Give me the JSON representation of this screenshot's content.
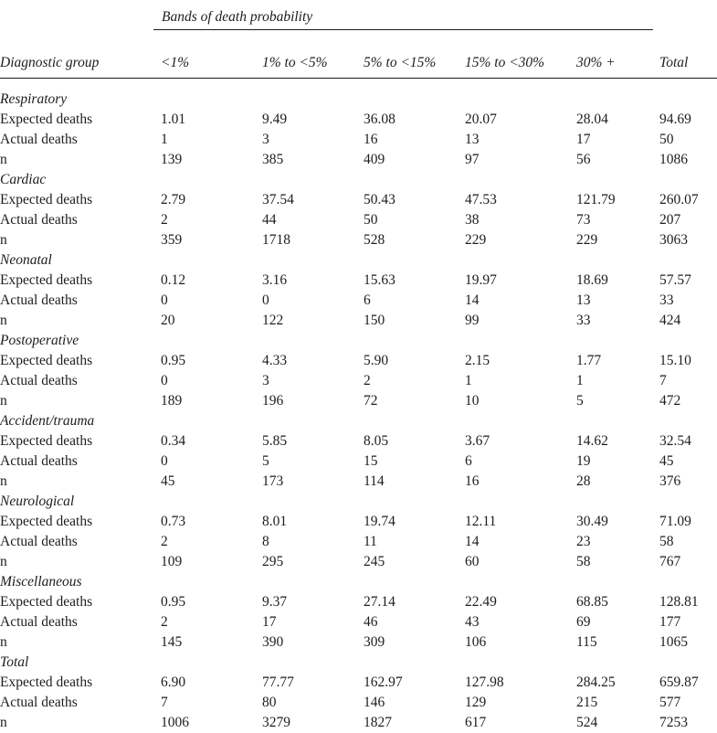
{
  "table": {
    "spanner": "Bands of death probability",
    "stub_header": "Diagnostic group",
    "columns": [
      "<1%",
      "1% to\n<5%",
      "5% to\n<15%",
      "15% to\n<30%",
      "30% +",
      "Total"
    ],
    "row_labels": [
      "Expected deaths",
      "Actual deaths",
      "n"
    ],
    "groups": [
      {
        "name": "Respiratory",
        "expected": [
          "1.01",
          "9.49",
          "36.08",
          "20.07",
          "28.04",
          "94.69"
        ],
        "actual": [
          "1",
          "3",
          "16",
          "13",
          "17",
          "50"
        ],
        "n": [
          "139",
          "385",
          "409",
          "97",
          "56",
          "1086"
        ]
      },
      {
        "name": "Cardiac",
        "expected": [
          "2.79",
          "37.54",
          "50.43",
          "47.53",
          "121.79",
          "260.07"
        ],
        "actual": [
          "2",
          "44",
          "50",
          "38",
          "73",
          "207"
        ],
        "n": [
          "359",
          "1718",
          "528",
          "229",
          "229",
          "3063"
        ]
      },
      {
        "name": "Neonatal",
        "expected": [
          "0.12",
          "3.16",
          "15.63",
          "19.97",
          "18.69",
          "57.57"
        ],
        "actual": [
          "0",
          "0",
          "6",
          "14",
          "13",
          "33"
        ],
        "n": [
          "20",
          "122",
          "150",
          "99",
          "33",
          "424"
        ]
      },
      {
        "name": "Postoperative",
        "expected": [
          "0.95",
          "4.33",
          "5.90",
          "2.15",
          "1.77",
          "15.10"
        ],
        "actual": [
          "0",
          "3",
          "2",
          "1",
          "1",
          "7"
        ],
        "n": [
          "189",
          "196",
          "72",
          "10",
          "5",
          "472"
        ]
      },
      {
        "name": "Accident/trauma",
        "expected": [
          "0.34",
          "5.85",
          "8.05",
          "3.67",
          "14.62",
          "32.54"
        ],
        "actual": [
          "0",
          "5",
          "15",
          "6",
          "19",
          "45"
        ],
        "n": [
          "45",
          "173",
          "114",
          "16",
          "28",
          "376"
        ]
      },
      {
        "name": "Neurological",
        "expected": [
          "0.73",
          "8.01",
          "19.74",
          "12.11",
          "30.49",
          "71.09"
        ],
        "actual": [
          "2",
          "8",
          "11",
          "14",
          "23",
          "58"
        ],
        "n": [
          "109",
          "295",
          "245",
          "60",
          "58",
          "767"
        ]
      },
      {
        "name": "Miscellaneous",
        "expected": [
          "0.95",
          "9.37",
          "27.14",
          "22.49",
          "68.85",
          "128.81"
        ],
        "actual": [
          "2",
          "17",
          "46",
          "43",
          "69",
          "177"
        ],
        "n": [
          "145",
          "390",
          "309",
          "106",
          "115",
          "1065"
        ]
      },
      {
        "name": "Total",
        "expected": [
          "6.90",
          "77.77",
          "162.97",
          "127.98",
          "284.25",
          "659.87"
        ],
        "actual": [
          "7",
          "80",
          "146",
          "129",
          "215",
          "577"
        ],
        "n": [
          "1006",
          "3279",
          "1827",
          "617",
          "524",
          "7253"
        ]
      }
    ],
    "colors": {
      "text": "#1d1d1d",
      "rule": "#1d1d1d",
      "background": "#ffffff"
    }
  }
}
